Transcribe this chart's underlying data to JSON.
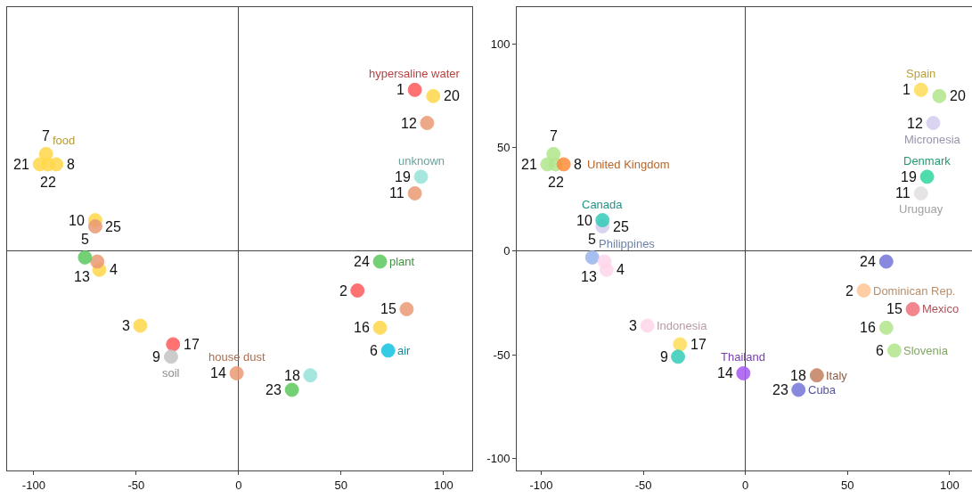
{
  "chart_data": [
    {
      "type": "scatter",
      "marker": "circle",
      "xlim": [
        -113,
        114
      ],
      "ylim": [
        -106,
        118
      ],
      "xticks": [
        -100,
        -50,
        0,
        50,
        100
      ],
      "yticks": [
        -100,
        -50,
        0,
        50,
        100
      ],
      "tick_labels": "x",
      "series": [
        {
          "name": "hypersaline water",
          "color": "#ff5a5a",
          "x": [
            86,
            58,
            -32
          ],
          "values": [
            78,
            -19,
            -45
          ]
        },
        {
          "name": "food",
          "color": "#ffd84a",
          "x": [
            -94,
            95,
            -97,
            -93,
            -89,
            -70,
            -68,
            -48,
            69
          ],
          "values": [
            47,
            75,
            42,
            42,
            42,
            15,
            -9,
            -36,
            -37
          ]
        },
        {
          "name": "house dust",
          "color": "#eb9a74",
          "x": [
            -1,
            92,
            86,
            -70,
            -69,
            82
          ],
          "values": [
            -59,
            62,
            28,
            12,
            -5,
            -28
          ]
        },
        {
          "name": "unknown",
          "color": "#96e3da",
          "x": [
            89,
            35
          ],
          "values": [
            36,
            -60
          ]
        },
        {
          "name": "plant",
          "color": "#5cc85c",
          "x": [
            69,
            -75,
            26
          ],
          "values": [
            -5,
            -3,
            -67
          ]
        },
        {
          "name": "soil",
          "color": "#c4c4c4",
          "x": [
            -33
          ],
          "values": [
            -51
          ]
        },
        {
          "name": "air",
          "color": "#12c3e0",
          "x": [
            73
          ],
          "values": [
            -48
          ]
        }
      ],
      "annotations": [
        {
          "text": "1",
          "x": 86,
          "y": 78
        },
        {
          "text": "2",
          "x": 58,
          "y": -19
        },
        {
          "text": "3",
          "x": -48,
          "y": -36
        },
        {
          "text": "4",
          "x": -68,
          "y": -9
        },
        {
          "text": "5",
          "x": -75,
          "y": -3
        },
        {
          "text": "6",
          "x": 73,
          "y": -48
        },
        {
          "text": "7",
          "x": -94,
          "y": 47
        },
        {
          "text": "8",
          "x": -89,
          "y": 42
        },
        {
          "text": "9",
          "x": -33,
          "y": -51
        },
        {
          "text": "10",
          "x": -70,
          "y": 15
        },
        {
          "text": "11",
          "x": 86,
          "y": 28
        },
        {
          "text": "12",
          "x": 92,
          "y": 62
        },
        {
          "text": "13",
          "x": -69,
          "y": -5
        },
        {
          "text": "14",
          "x": -1,
          "y": -59
        },
        {
          "text": "15",
          "x": 82,
          "y": -28
        },
        {
          "text": "16",
          "x": 69,
          "y": -37
        },
        {
          "text": "17",
          "x": -32,
          "y": -45
        },
        {
          "text": "18",
          "x": 35,
          "y": -60
        },
        {
          "text": "19",
          "x": 89,
          "y": 36
        },
        {
          "text": "20",
          "x": 95,
          "y": 75
        },
        {
          "text": "21",
          "x": -97,
          "y": 42
        },
        {
          "text": "22",
          "x": -93,
          "y": 42
        },
        {
          "text": "23",
          "x": 26,
          "y": -67
        },
        {
          "text": "24",
          "x": 69,
          "y": -5
        },
        {
          "text": "25",
          "x": -70,
          "y": 12
        }
      ]
    },
    {
      "type": "scatter",
      "marker": "circle",
      "xlim": [
        -112,
        111
      ],
      "ylim": [
        -106,
        118
      ],
      "xticks": [
        -100,
        -50,
        0,
        50,
        100
      ],
      "yticks": [
        -100,
        -50,
        0,
        50,
        100
      ],
      "series": [
        {
          "name": "Spain",
          "color": "#ffdc5a",
          "x": [
            86,
            -32
          ],
          "values": [
            78,
            -45
          ]
        },
        {
          "name": "Slovenia",
          "color": "#b2e68c",
          "x": [
            73,
            95,
            -94,
            -97,
            -93,
            69
          ],
          "values": [
            -48,
            75,
            47,
            42,
            42,
            -37
          ]
        },
        {
          "name": "United Kingdom",
          "color": "#ff8c3a",
          "x": [
            -89
          ],
          "values": [
            42
          ]
        },
        {
          "name": "Micronesia",
          "color": "#d4cdee",
          "x": [
            92,
            -70
          ],
          "values": [
            62,
            12
          ]
        },
        {
          "name": "Denmark",
          "color": "#2ed69e",
          "x": [
            89
          ],
          "values": [
            36
          ]
        },
        {
          "name": "Canada",
          "color": "#33cbb9",
          "x": [
            -70,
            -33
          ],
          "values": [
            15,
            -51
          ]
        },
        {
          "name": "Uruguay",
          "color": "#e2e0e0",
          "x": [
            86
          ],
          "values": [
            28
          ]
        },
        {
          "name": "Philippines",
          "color": "#98b4ec",
          "x": [
            -75
          ],
          "values": [
            -3
          ]
        },
        {
          "name": "Indonesia",
          "color": "#ffd6ea",
          "x": [
            -48,
            -69,
            -68
          ],
          "values": [
            -36,
            -5,
            -9
          ]
        },
        {
          "name": "Dominican Rep.",
          "color": "#ffc594",
          "x": [
            58
          ],
          "values": [
            -19
          ]
        },
        {
          "name": "Mexico",
          "color": "#f0707a",
          "x": [
            82
          ],
          "values": [
            -28
          ]
        },
        {
          "name": "Thailand",
          "color": "#a858f2",
          "x": [
            -1
          ],
          "values": [
            -59
          ]
        },
        {
          "name": "Italy",
          "color": "#c4805e",
          "x": [
            35
          ],
          "values": [
            -60
          ]
        },
        {
          "name": "Cuba",
          "color": "#7474da",
          "x": [
            26,
            69
          ],
          "values": [
            -67,
            -5
          ]
        }
      ],
      "annotations": [
        {
          "text": "1",
          "x": 86,
          "y": 78
        },
        {
          "text": "2",
          "x": 58,
          "y": -19
        },
        {
          "text": "3",
          "x": -48,
          "y": -36
        },
        {
          "text": "4",
          "x": -68,
          "y": -9
        },
        {
          "text": "5",
          "x": -75,
          "y": -3
        },
        {
          "text": "6",
          "x": 73,
          "y": -48
        },
        {
          "text": "7",
          "x": -94,
          "y": 47
        },
        {
          "text": "8",
          "x": -89,
          "y": 42
        },
        {
          "text": "9",
          "x": -33,
          "y": -51
        },
        {
          "text": "10",
          "x": -70,
          "y": 15
        },
        {
          "text": "11",
          "x": 86,
          "y": 28
        },
        {
          "text": "12",
          "x": 92,
          "y": 62
        },
        {
          "text": "13",
          "x": -69,
          "y": -5
        },
        {
          "text": "14",
          "x": -1,
          "y": -59
        },
        {
          "text": "15",
          "x": 82,
          "y": -28
        },
        {
          "text": "16",
          "x": 69,
          "y": -37
        },
        {
          "text": "17",
          "x": -32,
          "y": -45
        },
        {
          "text": "18",
          "x": 35,
          "y": -60
        },
        {
          "text": "19",
          "x": 89,
          "y": 36
        },
        {
          "text": "20",
          "x": 95,
          "y": 75
        },
        {
          "text": "21",
          "x": -97,
          "y": 42
        },
        {
          "text": "22",
          "x": -93,
          "y": 42
        },
        {
          "text": "23",
          "x": 26,
          "y": -67
        },
        {
          "text": "24",
          "x": 69,
          "y": -5
        },
        {
          "text": "25",
          "x": -70,
          "y": 12
        }
      ]
    }
  ]
}
